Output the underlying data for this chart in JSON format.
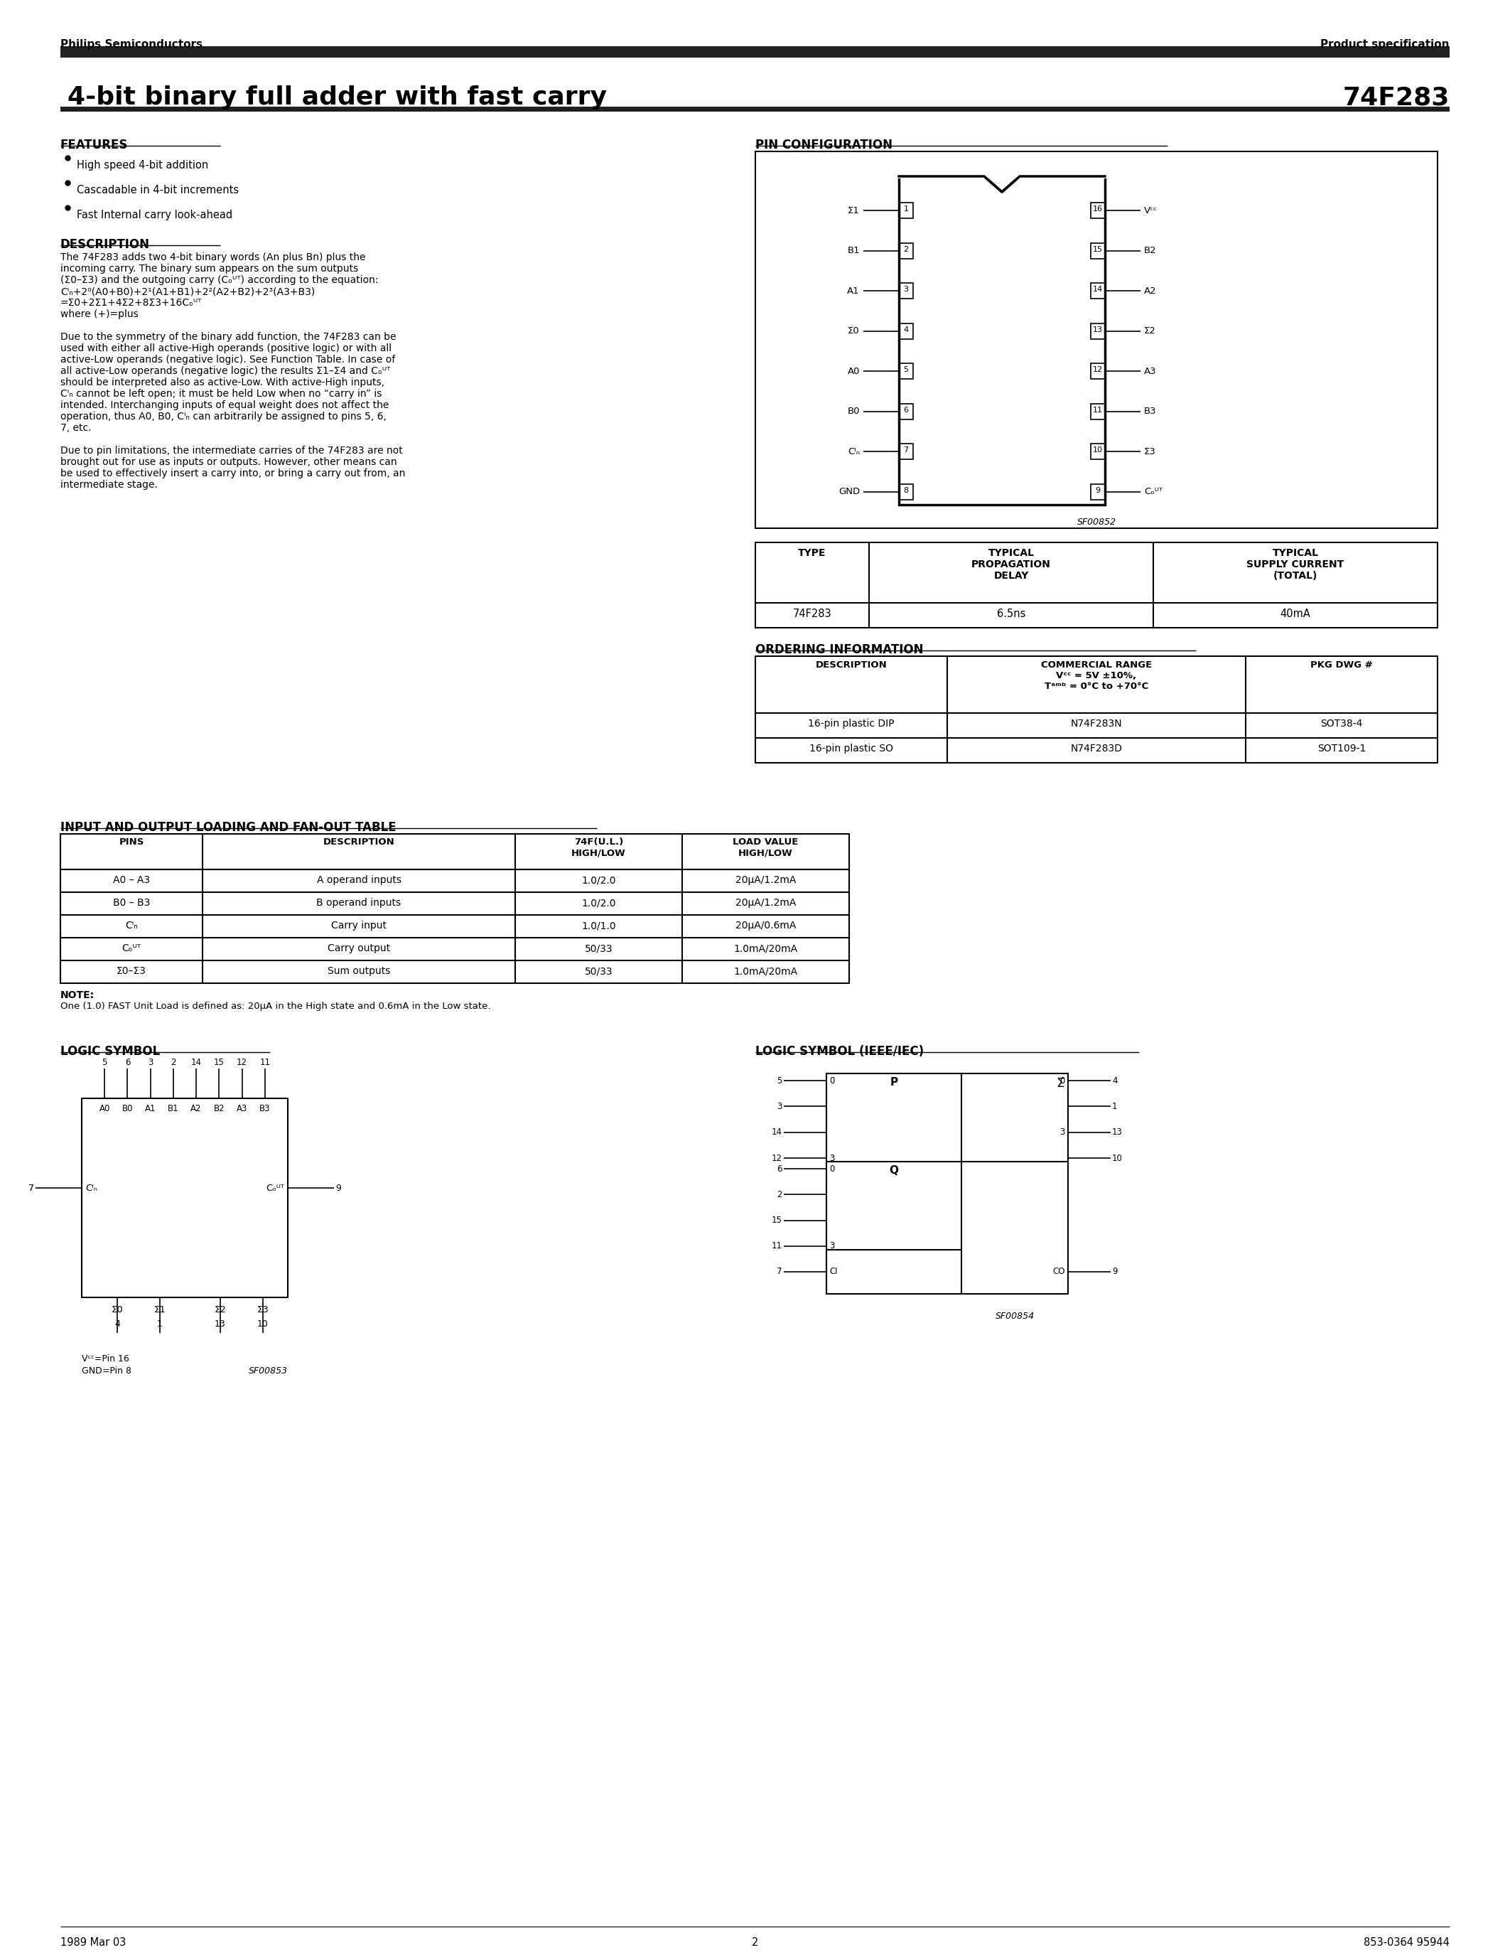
{
  "page_title": "4-bit binary full adder with fast carry",
  "part_number": "74F283",
  "company": "Philips Semiconductors",
  "doc_type": "Product specification",
  "footer_left": "1989 Mar 03",
  "footer_center": "2",
  "footer_right": "853-0364 95944",
  "features_title": "FEATURES",
  "features": [
    "High speed 4-bit addition",
    "Cascadable in 4-bit increments",
    "Fast Internal carry look-ahead"
  ],
  "pin_config_title": "PIN CONFIGURATION",
  "pin_config_note": "SF00852",
  "left_pin_labels": [
    "Σ1",
    "B1",
    "A1",
    "Σ0",
    "A0",
    "B0",
    "Cᴵₙ",
    "GND"
  ],
  "left_pin_nums": [
    "1",
    "2",
    "3",
    "4",
    "5",
    "6",
    "7",
    "8"
  ],
  "right_pin_labels": [
    "Vᶜᶜ",
    "B2",
    "A2",
    "Σ2",
    "A3",
    "B3",
    "Σ3",
    "Cₒᵁᵀ"
  ],
  "right_pin_nums": [
    "16",
    "15",
    "14",
    "13",
    "12",
    "11",
    "10",
    "9"
  ],
  "desc_title": "DESCRIPTION",
  "desc_lines": [
    "The 74F283 adds two 4-bit binary words (An plus Bn) plus the",
    "incoming carry. The binary sum appears on the sum outputs",
    "(Σ0–Σ3) and the outgoing carry (Cₒᵁᵀ) according to the equation:",
    "Cᴵₙ+2⁰(A0+B0)+2¹(A1+B1)+2²(A2+B2)+2³(A3+B3)",
    "=Σ0+2Σ1+4Σ2+8Σ3+16Cₒᵁᵀ",
    "where (+)=plus",
    "",
    "Due to the symmetry of the binary add function, the 74F283 can be",
    "used with either all active-High operands (positive logic) or with all",
    "active-Low operands (negative logic). See Function Table. In case of",
    "all active-Low operands (negative logic) the results Σ1–Σ4 and Cₒᵁᵀ",
    "should be interpreted also as active-Low. With active-High inputs,",
    "Cᴵₙ cannot be left open; it must be held Low when no “carry in” is",
    "intended. Interchanging inputs of equal weight does not affect the",
    "operation, thus A0, B0, Cᴵₙ can arbitrarily be assigned to pins 5, 6,",
    "7, etc.",
    "",
    "Due to pin limitations, the intermediate carries of the 74F283 are not",
    "brought out for use as inputs or outputs. However, other means can",
    "be used to effectively insert a carry into, or bring a carry out from, an",
    "intermediate stage."
  ],
  "typical_headers": [
    "TYPE",
    "TYPICAL\nPROPAGATION\nDELAY",
    "TYPICAL\nSUPPLY CURRENT\n(TOTAL)"
  ],
  "typical_row": [
    "74F283",
    "6.5ns",
    "40mA"
  ],
  "ordering_title": "ORDERING INFORMATION",
  "ordering_headers": [
    "DESCRIPTION",
    "COMMERCIAL RANGE\nVᶜᶜ = 5V ±10%,\nTᵃᵐᵇ = 0°C to +70°C",
    "PKG DWG #"
  ],
  "ordering_rows": [
    [
      "16-pin plastic DIP",
      "N74F283N",
      "SOT38-4"
    ],
    [
      "16-pin plastic SO",
      "N74F283D",
      "SOT109-1"
    ]
  ],
  "fanout_title": "INPUT AND OUTPUT LOADING AND FAN-OUT TABLE",
  "fanout_headers": [
    "PINS",
    "DESCRIPTION",
    "74F(U.L.)\nHIGH/LOW",
    "LOAD VALUE\nHIGH/LOW"
  ],
  "fanout_rows": [
    [
      "A0 – A3",
      "A operand inputs",
      "1.0/2.0",
      "20μA/1.2mA"
    ],
    [
      "B0 – B3",
      "B operand inputs",
      "1.0/2.0",
      "20μA/1.2mA"
    ],
    [
      "Cᴵₙ",
      "Carry input",
      "1.0/1.0",
      "20μA/0.6mA"
    ],
    [
      "Cₒᵁᵀ",
      "Carry output",
      "50/33",
      "1.0mA/20mA"
    ],
    [
      "Σ0–Σ3",
      "Sum outputs",
      "50/33",
      "1.0mA/20mA"
    ]
  ],
  "fanout_note_bold": "NOTE:",
  "fanout_note_text": "One (1.0) FAST Unit Load is defined as: 20μA in the High state and 0.6mA in the Low state.",
  "logic_sym_title": "LOGIC SYMBOL",
  "logic_sym_note": "SF00853",
  "logic_sym_vcc": "Vᶜᶜ=Pin 16",
  "logic_sym_gnd": "GND=Pin 8",
  "ieee_sym_title": "LOGIC SYMBOL (IEEE/IEC)",
  "ieee_sym_note": "SF00854",
  "bg": "#ffffff",
  "black": "#000000",
  "bar_color": "#222222"
}
